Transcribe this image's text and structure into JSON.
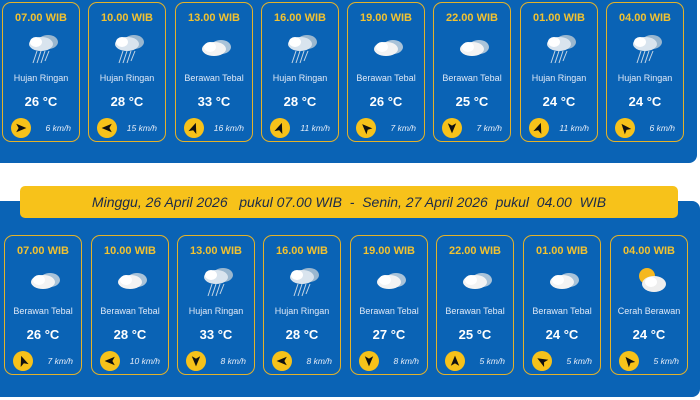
{
  "colors": {
    "panel": "#0a63b5",
    "accent": "#f7c21a",
    "card_border": "#e3b22a"
  },
  "day1": {
    "forecasts": [
      {
        "time": "07.00 WIB",
        "icon": "light-rain",
        "condition": "Hujan Ringan",
        "temp": "26 °C",
        "wind_dir_deg": 90,
        "wind": "6 km/h"
      },
      {
        "time": "10.00 WIB",
        "icon": "light-rain",
        "condition": "Hujan Ringan",
        "temp": "28 °C",
        "wind_dir_deg": 270,
        "wind": "15 km/h"
      },
      {
        "time": "13.00 WIB",
        "icon": "overcast",
        "condition": "Berawan Tebal",
        "temp": "33 °C",
        "wind_dir_deg": 20,
        "wind": "16 km/h"
      },
      {
        "time": "16.00 WIB",
        "icon": "light-rain",
        "condition": "Hujan Ringan",
        "temp": "28 °C",
        "wind_dir_deg": 20,
        "wind": "11 km/h"
      },
      {
        "time": "19.00 WIB",
        "icon": "overcast",
        "condition": "Berawan Tebal",
        "temp": "26 °C",
        "wind_dir_deg": 315,
        "wind": "7 km/h"
      },
      {
        "time": "22.00 WIB",
        "icon": "overcast",
        "condition": "Berawan Tebal",
        "temp": "25 °C",
        "wind_dir_deg": 180,
        "wind": "7 km/h"
      },
      {
        "time": "01.00 WIB",
        "icon": "light-rain",
        "condition": "Hujan Ringan",
        "temp": "24 °C",
        "wind_dir_deg": 20,
        "wind": "11 km/h"
      },
      {
        "time": "04.00 WIB",
        "icon": "light-rain",
        "condition": "Hujan Ringan",
        "temp": "24 °C",
        "wind_dir_deg": 320,
        "wind": "6 km/h"
      }
    ]
  },
  "banner": {
    "text": "Minggu, 26 April 2026   pukul 07.00 WIB  -  Senin, 27 April 2026  pukul  04.00  WIB"
  },
  "day2": {
    "forecasts": [
      {
        "time": "07.00 WIB",
        "icon": "overcast",
        "condition": "Berawan Tebal",
        "temp": "26 °C",
        "wind_dir_deg": 340,
        "wind": "7 km/h"
      },
      {
        "time": "10.00 WIB",
        "icon": "overcast",
        "condition": "Berawan Tebal",
        "temp": "28 °C",
        "wind_dir_deg": 270,
        "wind": "10 km/h"
      },
      {
        "time": "13.00 WIB",
        "icon": "light-rain",
        "condition": "Hujan Ringan",
        "temp": "33 °C",
        "wind_dir_deg": 180,
        "wind": "8 km/h"
      },
      {
        "time": "16.00 WIB",
        "icon": "light-rain",
        "condition": "Hujan Ringan",
        "temp": "28 °C",
        "wind_dir_deg": 270,
        "wind": "8 km/h"
      },
      {
        "time": "19.00 WIB",
        "icon": "overcast",
        "condition": "Berawan Tebal",
        "temp": "27 °C",
        "wind_dir_deg": 180,
        "wind": "8 km/h"
      },
      {
        "time": "22.00 WIB",
        "icon": "overcast",
        "condition": "Berawan Tebal",
        "temp": "25 °C",
        "wind_dir_deg": 0,
        "wind": "5 km/h"
      },
      {
        "time": "01.00 WIB",
        "icon": "overcast",
        "condition": "Berawan Tebal",
        "temp": "24 °C",
        "wind_dir_deg": 300,
        "wind": "5 km/h"
      },
      {
        "time": "04.00 WIB",
        "icon": "partly-cloudy",
        "condition": "Cerah Berawan",
        "temp": "24 °C",
        "wind_dir_deg": 320,
        "wind": "5 km/h"
      }
    ]
  }
}
